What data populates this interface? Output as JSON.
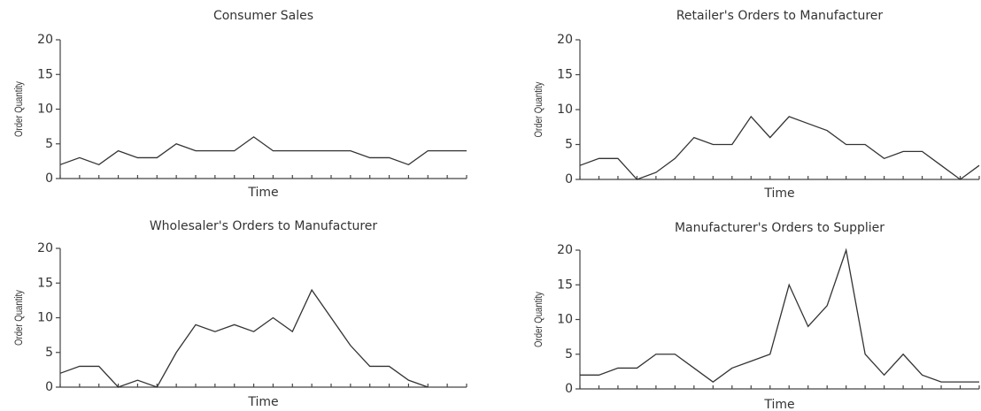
{
  "chart_data": [
    {
      "type": "line",
      "title": "Consumer Sales",
      "xlabel": "Time",
      "ylabel": "Order Quantity",
      "values": [
        2,
        3,
        2,
        4,
        3,
        3,
        5,
        4,
        4,
        4,
        6,
        4,
        4,
        4,
        4,
        4,
        3,
        3,
        2,
        4,
        4,
        4
      ],
      "color": "#333333",
      "ylim": [
        0,
        20
      ],
      "yticks": [
        0,
        5,
        10,
        15,
        20
      ]
    },
    {
      "type": "line",
      "title": "Retailer's Orders to Manufacturer",
      "xlabel": "Time",
      "ylabel": "Order Quantity",
      "values": [
        2,
        3,
        3,
        0,
        1,
        3,
        6,
        5,
        5,
        9,
        6,
        9,
        8,
        7,
        5,
        5,
        3,
        4,
        4,
        2,
        0,
        2
      ],
      "color": "#333333",
      "ylim": [
        0,
        20
      ],
      "yticks": [
        0,
        5,
        10,
        15,
        20
      ]
    },
    {
      "type": "line",
      "title": "Wholesaler's Orders to Manufacturer",
      "xlabel": "Time",
      "ylabel": "Order Quantity",
      "values": [
        2,
        3,
        3,
        0,
        1,
        0,
        5,
        9,
        8,
        9,
        8,
        10,
        8,
        14,
        10,
        6,
        3,
        3,
        1,
        0,
        null,
        null
      ],
      "color": "#333333",
      "ylim": [
        0,
        20
      ],
      "yticks": [
        0,
        5,
        10,
        15,
        20
      ]
    },
    {
      "type": "line",
      "title": "Manufacturer's Orders to Supplier",
      "xlabel": "Time",
      "ylabel": "Order Quantity",
      "values": [
        2,
        2,
        3,
        3,
        5,
        5,
        3,
        1,
        3,
        4,
        5,
        15,
        9,
        12,
        20,
        5,
        2,
        5,
        2,
        1,
        1,
        1
      ],
      "color": "#333333",
      "ylim": [
        0,
        20
      ],
      "yticks": [
        0,
        5,
        10,
        15,
        20
      ]
    }
  ]
}
